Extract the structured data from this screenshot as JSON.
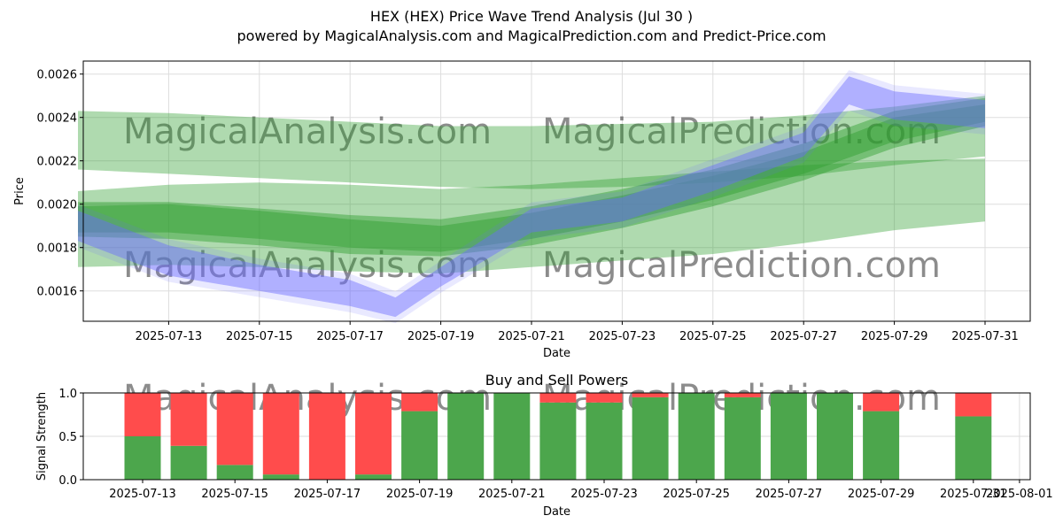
{
  "title": "HEX (HEX) Price Wave Trend Analysis (Jul 30 )",
  "subtitle": "powered by MagicalAnalysis.com and MagicalPrediction.com and Predict-Price.com",
  "watermarks": [
    "MagicalAnalysis.com",
    "MagicalPrediction.com"
  ],
  "colors": {
    "green": "#2e9e2e",
    "blue": "#6a6aff",
    "buy": "#4ca64c",
    "sell": "#ff4c4c"
  },
  "chart_data": [
    {
      "type": "area",
      "title": "",
      "xlabel": "Date",
      "ylabel": "Price",
      "x_ticks": [
        "2025-07-13",
        "2025-07-15",
        "2025-07-17",
        "2025-07-19",
        "2025-07-21",
        "2025-07-23",
        "2025-07-25",
        "2025-07-27",
        "2025-07-29",
        "2025-07-31"
      ],
      "y_ticks": [
        "0.0016",
        "0.0018",
        "0.0020",
        "0.0022",
        "0.0024",
        "0.0026"
      ],
      "xlim": [
        "2025-07-11",
        "2025-07-31"
      ],
      "ylim": [
        0.00146,
        0.00266
      ],
      "grid": true,
      "series": [
        {
          "color": "green",
          "upper": [
            [
              "2025-07-11",
              0.00243
            ],
            [
              "2025-07-13",
              0.00242
            ],
            [
              "2025-07-15",
              0.0024
            ],
            [
              "2025-07-17",
              0.00238
            ],
            [
              "2025-07-19",
              0.00236
            ],
            [
              "2025-07-21",
              0.00236
            ],
            [
              "2025-07-23",
              0.00237
            ],
            [
              "2025-07-25",
              0.00238
            ],
            [
              "2025-07-27",
              0.00241
            ],
            [
              "2025-07-29",
              0.00245
            ],
            [
              "2025-07-31",
              0.0025
            ]
          ],
          "lower": [
            [
              "2025-07-11",
              0.00216
            ],
            [
              "2025-07-13",
              0.00214
            ],
            [
              "2025-07-15",
              0.00212
            ],
            [
              "2025-07-17",
              0.0021
            ],
            [
              "2025-07-19",
              0.00208
            ],
            [
              "2025-07-21",
              0.00207
            ],
            [
              "2025-07-23",
              0.00208
            ],
            [
              "2025-07-25",
              0.0021
            ],
            [
              "2025-07-27",
              0.00213
            ],
            [
              "2025-07-29",
              0.00218
            ],
            [
              "2025-07-31",
              0.00222
            ]
          ]
        },
        {
          "color": "green",
          "upper": [
            [
              "2025-07-11",
              0.00206
            ],
            [
              "2025-07-13",
              0.00209
            ],
            [
              "2025-07-15",
              0.0021
            ],
            [
              "2025-07-17",
              0.00209
            ],
            [
              "2025-07-19",
              0.00207
            ],
            [
              "2025-07-21",
              0.00209
            ],
            [
              "2025-07-23",
              0.00212
            ],
            [
              "2025-07-25",
              0.00215
            ],
            [
              "2025-07-27",
              0.00218
            ],
            [
              "2025-07-29",
              0.0022
            ],
            [
              "2025-07-31",
              0.00221
            ]
          ],
          "lower": [
            [
              "2025-07-11",
              0.00171
            ],
            [
              "2025-07-13",
              0.00172
            ],
            [
              "2025-07-15",
              0.00171
            ],
            [
              "2025-07-17",
              0.00169
            ],
            [
              "2025-07-19",
              0.00168
            ],
            [
              "2025-07-21",
              0.00171
            ],
            [
              "2025-07-23",
              0.00174
            ],
            [
              "2025-07-25",
              0.00177
            ],
            [
              "2025-07-27",
              0.00182
            ],
            [
              "2025-07-29",
              0.00188
            ],
            [
              "2025-07-31",
              0.00192
            ]
          ]
        },
        {
          "color": "green",
          "upper": [
            [
              "2025-07-11",
              0.00201
            ],
            [
              "2025-07-13",
              0.00201
            ],
            [
              "2025-07-15",
              0.00198
            ],
            [
              "2025-07-17",
              0.00195
            ],
            [
              "2025-07-19",
              0.00193
            ],
            [
              "2025-07-21",
              0.00199
            ],
            [
              "2025-07-23",
              0.00207
            ],
            [
              "2025-07-25",
              0.00216
            ],
            [
              "2025-07-27",
              0.00228
            ],
            [
              "2025-07-29",
              0.00243
            ],
            [
              "2025-07-31",
              0.00249
            ]
          ],
          "lower": [
            [
              "2025-07-11",
              0.00185
            ],
            [
              "2025-07-13",
              0.00184
            ],
            [
              "2025-07-15",
              0.00181
            ],
            [
              "2025-07-17",
              0.00177
            ],
            [
              "2025-07-19",
              0.00176
            ],
            [
              "2025-07-21",
              0.00181
            ],
            [
              "2025-07-23",
              0.00189
            ],
            [
              "2025-07-25",
              0.00199
            ],
            [
              "2025-07-27",
              0.00211
            ],
            [
              "2025-07-29",
              0.00226
            ],
            [
              "2025-07-31",
              0.00236
            ]
          ]
        },
        {
          "color": "green",
          "upper": [
            [
              "2025-07-11",
              0.00199
            ],
            [
              "2025-07-13",
              0.002
            ],
            [
              "2025-07-15",
              0.00197
            ],
            [
              "2025-07-17",
              0.00193
            ],
            [
              "2025-07-19",
              0.0019
            ],
            [
              "2025-07-21",
              0.00196
            ],
            [
              "2025-07-23",
              0.00204
            ],
            [
              "2025-07-25",
              0.00213
            ],
            [
              "2025-07-27",
              0.00224
            ],
            [
              "2025-07-29",
              0.0024
            ],
            [
              "2025-07-31",
              0.00246
            ]
          ],
          "lower": [
            [
              "2025-07-11",
              0.00187
            ],
            [
              "2025-07-13",
              0.00187
            ],
            [
              "2025-07-15",
              0.00184
            ],
            [
              "2025-07-17",
              0.0018
            ],
            [
              "2025-07-19",
              0.00178
            ],
            [
              "2025-07-21",
              0.00184
            ],
            [
              "2025-07-23",
              0.00192
            ],
            [
              "2025-07-25",
              0.00202
            ],
            [
              "2025-07-27",
              0.00214
            ],
            [
              "2025-07-29",
              0.00229
            ],
            [
              "2025-07-31",
              0.00238
            ]
          ]
        },
        {
          "color": "blue",
          "upper": [
            [
              "2025-07-11",
              0.00197
            ],
            [
              "2025-07-13",
              0.00181
            ],
            [
              "2025-07-15",
              0.00172
            ],
            [
              "2025-07-17",
              0.00165
            ],
            [
              "2025-07-18",
              0.00157
            ],
            [
              "2025-07-19",
              0.00171
            ],
            [
              "2025-07-21",
              0.00198
            ],
            [
              "2025-07-23",
              0.00203
            ],
            [
              "2025-07-25",
              0.00218
            ],
            [
              "2025-07-27",
              0.00233
            ],
            [
              "2025-07-28",
              0.00259
            ],
            [
              "2025-07-29",
              0.00252
            ],
            [
              "2025-07-31",
              0.00248
            ]
          ],
          "lower": [
            [
              "2025-07-11",
              0.00183
            ],
            [
              "2025-07-13",
              0.00167
            ],
            [
              "2025-07-15",
              0.0016
            ],
            [
              "2025-07-17",
              0.00153
            ],
            [
              "2025-07-18",
              0.00148
            ],
            [
              "2025-07-19",
              0.00162
            ],
            [
              "2025-07-21",
              0.00187
            ],
            [
              "2025-07-23",
              0.00192
            ],
            [
              "2025-07-25",
              0.00206
            ],
            [
              "2025-07-27",
              0.00222
            ],
            [
              "2025-07-28",
              0.00246
            ],
            [
              "2025-07-29",
              0.00239
            ],
            [
              "2025-07-31",
              0.00235
            ]
          ]
        }
      ]
    },
    {
      "type": "bar",
      "title": "Buy and Sell Powers",
      "xlabel": "Date",
      "ylabel": "Signal Strength",
      "x_ticks": [
        "2025-07-13",
        "2025-07-15",
        "2025-07-17",
        "2025-07-19",
        "2025-07-21",
        "2025-07-23",
        "2025-07-25",
        "2025-07-27",
        "2025-07-29",
        "2025-07-31",
        "2025-08-01"
      ],
      "y_ticks": [
        "0.0",
        "0.5",
        "1.0"
      ],
      "ylim": [
        0,
        1
      ],
      "categories": [
        "2025-07-13",
        "2025-07-14",
        "2025-07-15",
        "2025-07-16",
        "2025-07-17",
        "2025-07-18",
        "2025-07-19",
        "2025-07-20",
        "2025-07-21",
        "2025-07-22",
        "2025-07-23",
        "2025-07-24",
        "2025-07-25",
        "2025-07-26",
        "2025-07-27",
        "2025-07-28",
        "2025-07-29",
        "2025-07-30",
        "2025-07-31"
      ],
      "series": [
        {
          "color": "buy",
          "values": [
            0.5,
            0.39,
            0.17,
            0.06,
            0.0,
            0.06,
            0.79,
            1.0,
            1.0,
            0.89,
            0.89,
            0.95,
            1.0,
            0.95,
            1.0,
            1.0,
            0.79,
            null,
            0.73
          ]
        },
        {
          "color": "sell",
          "values": [
            0.5,
            0.61,
            0.83,
            0.94,
            1.0,
            0.94,
            0.21,
            0.0,
            0.0,
            0.11,
            0.11,
            0.05,
            0.0,
            0.05,
            0.0,
            0.0,
            0.21,
            null,
            0.27
          ]
        }
      ]
    }
  ]
}
